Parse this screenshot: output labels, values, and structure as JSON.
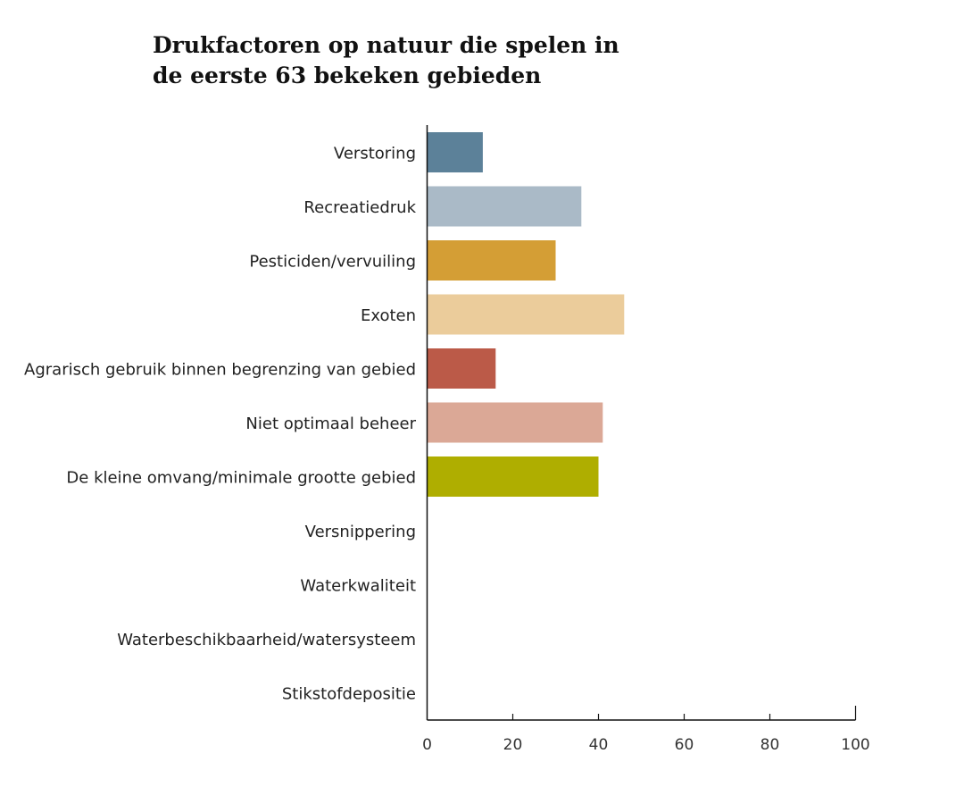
{
  "chart_data": {
    "type": "bar",
    "orientation": "horizontal",
    "title_lines": [
      "Drukfactoren op natuur die spelen in",
      "de eerste 63 bekeken gebieden"
    ],
    "categories": [
      "Verstoring",
      "Recreatiedruk",
      "Pesticiden/vervuiling",
      "Exoten",
      "Agrarisch gebruik binnen begrenzing van gebied",
      "Niet optimaal beheer",
      "De kleine omvang/minimale grootte gebied",
      "Versnippering",
      "Waterkwaliteit",
      "Waterbeschikbaarheid/watersysteem",
      "Stikstofdepositie"
    ],
    "values": [
      13,
      36,
      30,
      46,
      16,
      41,
      40,
      0,
      0,
      0,
      0
    ],
    "colors": [
      "#5c8199",
      "#aabac7",
      "#d49e35",
      "#ebcc9b",
      "#bb5a48",
      "#dba896",
      "#afae00",
      "#cccccc",
      "#cccccc",
      "#cccccc",
      "#cccccc"
    ],
    "xlim": [
      0,
      100
    ],
    "xticks": [
      "0",
      "20",
      "40",
      "60",
      "80",
      "100"
    ],
    "xlabel": "",
    "ylabel": "",
    "grid": false
  }
}
